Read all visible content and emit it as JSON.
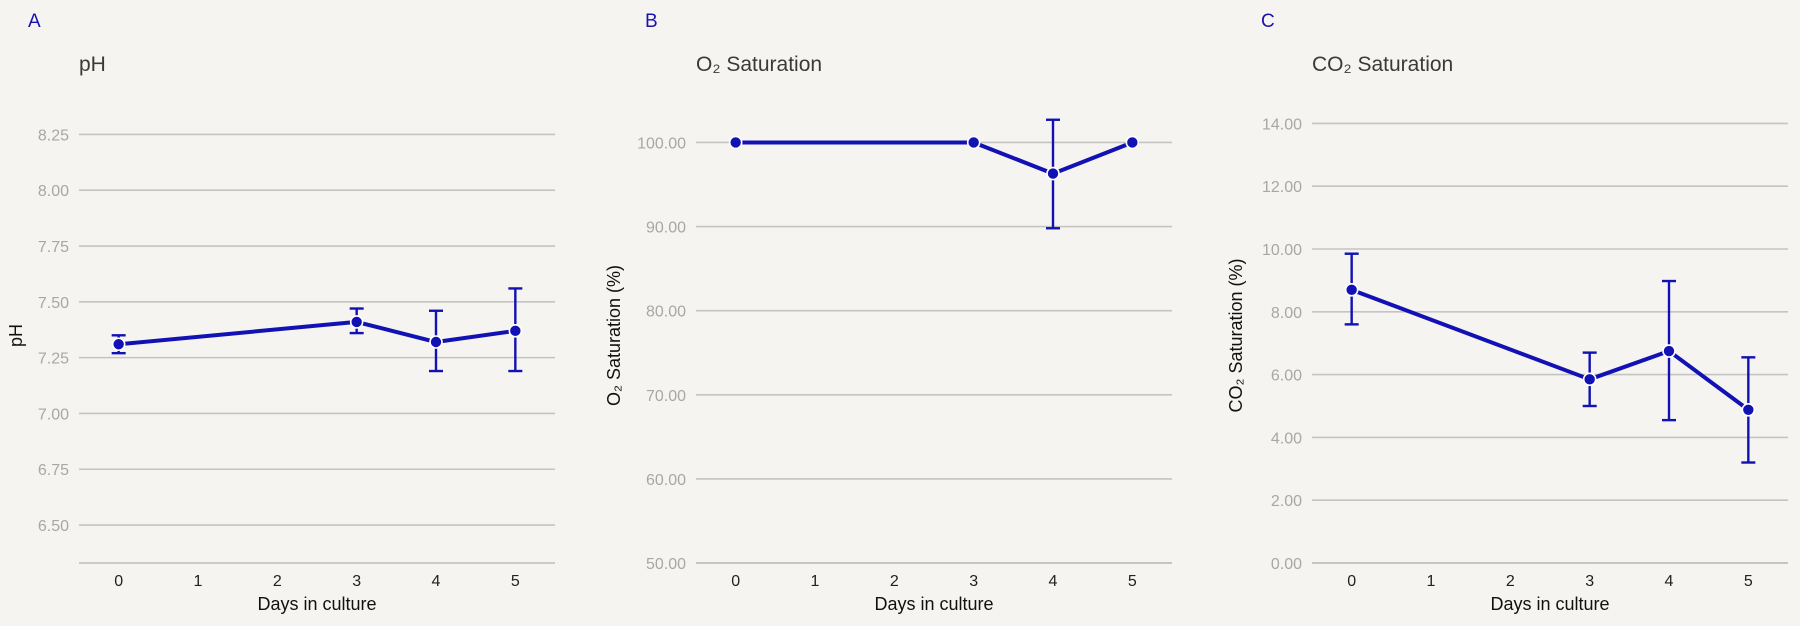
{
  "colors": {
    "series": "#1212b4",
    "marker_edge": "#ffffff"
  },
  "chart_data": [
    {
      "type": "line",
      "panel_label": "A",
      "title": "pH",
      "xlabel": "Days in culture",
      "ylabel": "pH",
      "x_ticks": [
        "0",
        "1",
        "2",
        "3",
        "4",
        "5"
      ],
      "y_ticks": [
        "6.50",
        "6.75",
        "7.00",
        "7.25",
        "7.50",
        "7.75",
        "8.00",
        "8.25"
      ],
      "xlim": [
        -0.5,
        5.5
      ],
      "ylim": [
        6.33,
        8.44
      ],
      "grid": true,
      "series": [
        {
          "x": [
            0,
            3,
            4,
            5
          ],
          "y": [
            7.31,
            7.41,
            7.32,
            7.37
          ],
          "err_low": [
            7.27,
            7.36,
            7.19,
            7.19
          ],
          "err_high": [
            7.35,
            7.47,
            7.46,
            7.56
          ]
        }
      ]
    },
    {
      "type": "line",
      "panel_label": "B",
      "title": "O₂ Saturation",
      "xlabel": "Days in culture",
      "ylabel": "O₂ Saturation (%)",
      "x_ticks": [
        "0",
        "1",
        "2",
        "3",
        "4",
        "5"
      ],
      "y_ticks": [
        "50.00",
        "60.00",
        "70.00",
        "80.00",
        "90.00",
        "100.00"
      ],
      "xlim": [
        -0.5,
        5.5
      ],
      "ylim": [
        50,
        106
      ],
      "grid": true,
      "series": [
        {
          "x": [
            0,
            3,
            4,
            5
          ],
          "y": [
            100,
            100,
            96.3,
            100
          ],
          "err_low": [
            100,
            100,
            89.8,
            100
          ],
          "err_high": [
            100,
            100,
            102.7,
            100
          ]
        }
      ]
    },
    {
      "type": "line",
      "panel_label": "C",
      "title": "CO₂ Saturation",
      "xlabel": "Days in culture",
      "ylabel": "CO₂ Saturation (%)",
      "x_ticks": [
        "0",
        "1",
        "2",
        "3",
        "4",
        "5"
      ],
      "y_ticks": [
        "0.00",
        "2.00",
        "4.00",
        "6.00",
        "8.00",
        "10.00",
        "12.00",
        "14.00"
      ],
      "xlim": [
        -0.5,
        5.5
      ],
      "ylim": [
        0,
        15
      ],
      "grid": true,
      "series": [
        {
          "x": [
            0,
            3,
            4,
            5
          ],
          "y": [
            8.7,
            5.85,
            6.75,
            4.88
          ],
          "err_low": [
            7.6,
            5.0,
            4.55,
            3.2
          ],
          "err_high": [
            9.85,
            6.7,
            8.98,
            6.55
          ]
        }
      ]
    }
  ]
}
